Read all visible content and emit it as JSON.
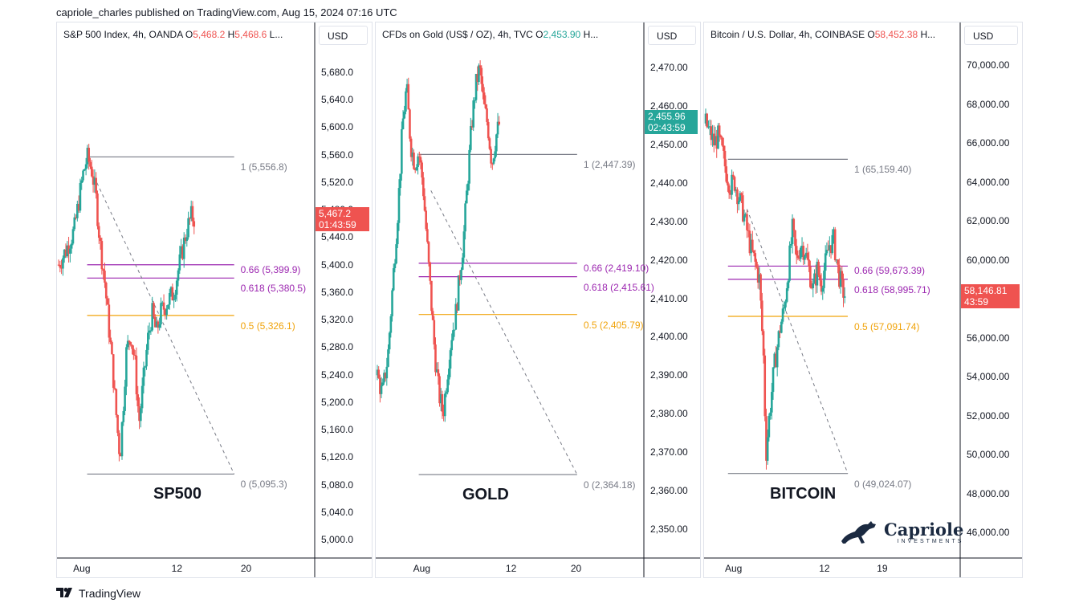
{
  "byline": "capriole_charles published on TradingView.com, Aug 15, 2024 07:16 UTC",
  "footer_brand": "TradingView",
  "watermark": {
    "name": "Capriole",
    "tagline": "INVESTMENTS"
  },
  "colors": {
    "up": "#26a69a",
    "down": "#ef5350",
    "fib_0618": "#9c27b0",
    "fib_05": "#f0a30a",
    "fib_extreme": "#787b86"
  },
  "chart_data": [
    {
      "type": "candlestick",
      "name": "SP500",
      "header": {
        "symbol": "S&P 500 Index, 4h, OANDA",
        "o_label": "O",
        "o": "5,468.2",
        "h_label": "H",
        "h": "5,468.6",
        "trail": "L..."
      },
      "currency": "USD",
      "ylim": [
        4985,
        5725
      ],
      "yticks": [
        "5,680.0",
        "5,640.0",
        "5,600.0",
        "5,560.0",
        "5,520.0",
        "5,480.0",
        "5,440.0",
        "5,400.0",
        "5,360.0",
        "5,320.0",
        "5,280.0",
        "5,240.0",
        "5,200.0",
        "5,160.0",
        "5,120.0",
        "5,080.0",
        "5,040.0",
        "5,000.0"
      ],
      "ytick_values": [
        5680,
        5640,
        5600,
        5560,
        5520,
        5480,
        5440,
        5400,
        5360,
        5320,
        5280,
        5240,
        5200,
        5160,
        5120,
        5080,
        5040,
        5000
      ],
      "xticks": [
        "Aug",
        "12",
        "20"
      ],
      "xtick_days": [
        1,
        12,
        20
      ],
      "x_range_days": [
        -1.8,
        21.5
      ],
      "last_price": "5,467.2",
      "countdown": "01:43:59",
      "last_value": 5467.2,
      "fib_levels": [
        {
          "label": "1 (5,556.8)",
          "value": 5556.8,
          "kind": "extreme"
        },
        {
          "label": "0.66 (5,399.9)",
          "value": 5399.9,
          "kind": "fib"
        },
        {
          "label": "0.618 (5,380.5)",
          "value": 5380.5,
          "kind": "fib"
        },
        {
          "label": "0.5 (5,326.1)",
          "value": 5326.1,
          "kind": "half"
        },
        {
          "label": "0 (5,095.3)",
          "value": 5095.3,
          "kind": "extreme"
        }
      ],
      "fib_span_days": [
        1.5,
        18.5
      ],
      "trend_from": {
        "day": 2.0,
        "value": 5536
      },
      "trend_to": {
        "day": 18.5,
        "value": 5095.3
      },
      "path": [
        [
          -1.8,
          5400
        ],
        [
          -1,
          5420
        ],
        [
          0,
          5450
        ],
        [
          1,
          5530
        ],
        [
          1.5,
          5556
        ],
        [
          2,
          5540
        ],
        [
          2.5,
          5500
        ],
        [
          3,
          5430
        ],
        [
          3.5,
          5380
        ],
        [
          4,
          5310
        ],
        [
          4.5,
          5240
        ],
        [
          5,
          5160
        ],
        [
          5.3,
          5120
        ],
        [
          5.7,
          5200
        ],
        [
          6,
          5270
        ],
        [
          6.5,
          5300
        ],
        [
          7,
          5260
        ],
        [
          7.5,
          5170
        ],
        [
          8,
          5230
        ],
        [
          8.5,
          5290
        ],
        [
          9,
          5330
        ],
        [
          9.5,
          5300
        ],
        [
          10,
          5330
        ],
        [
          10.5,
          5340
        ],
        [
          11,
          5350
        ],
        [
          11.5,
          5360
        ],
        [
          12,
          5390
        ],
        [
          12.5,
          5420
        ],
        [
          13,
          5450
        ],
        [
          13.5,
          5470
        ],
        [
          14,
          5467
        ]
      ]
    },
    {
      "type": "candlestick",
      "name": "GOLD",
      "header": {
        "symbol": "CFDs on Gold (US$ / OZ), 4h, TVC",
        "o_label": "O",
        "o": "2,453.90",
        "h_label": "H",
        "h": "",
        "trail": "..."
      },
      "currency": "USD",
      "ylim": [
        2343.5,
        2475
      ],
      "yticks": [
        "2,470.00",
        "2,460.00",
        "2,450.00",
        "2,440.00",
        "2,430.00",
        "2,420.00",
        "2,410.00",
        "2,400.00",
        "2,390.00",
        "2,380.00",
        "2,370.00",
        "2,360.00",
        "2,350.00"
      ],
      "ytick_values": [
        2470,
        2460,
        2450,
        2440,
        2430,
        2420,
        2410,
        2400,
        2390,
        2380,
        2370,
        2360,
        2350
      ],
      "xticks": [
        "Aug",
        "12",
        "20"
      ],
      "xtick_days": [
        1,
        12,
        20
      ],
      "x_range_days": [
        -4.6,
        21.5
      ],
      "last_price": "2,455.96",
      "countdown": "02:43:59",
      "last_value": 2455.96,
      "fib_levels": [
        {
          "label": "1 (2,447.39)",
          "value": 2447.39,
          "kind": "extreme"
        },
        {
          "label": "0.66 (2,419.10)",
          "value": 2419.1,
          "kind": "fib"
        },
        {
          "label": "0.618 (2,415.61)",
          "value": 2415.61,
          "kind": "fib"
        },
        {
          "label": "0.5 (2,405.79)",
          "value": 2405.79,
          "kind": "half"
        },
        {
          "label": "0 (2,364.18)",
          "value": 2364.18,
          "kind": "extreme"
        }
      ],
      "fib_span_days": [
        0.5,
        20
      ],
      "trend_from": {
        "day": 2.0,
        "value": 2438
      },
      "trend_to": {
        "day": 20,
        "value": 2364.18
      },
      "path": [
        [
          -4.6,
          2390
        ],
        [
          -4,
          2385
        ],
        [
          -3.3,
          2395
        ],
        [
          -2.5,
          2420
        ],
        [
          -2,
          2435
        ],
        [
          -1.5,
          2455
        ],
        [
          -1,
          2465
        ],
        [
          -0.5,
          2450
        ],
        [
          0,
          2445
        ],
        [
          0.5,
          2448
        ],
        [
          1,
          2440
        ],
        [
          1.5,
          2425
        ],
        [
          2,
          2410
        ],
        [
          2.5,
          2395
        ],
        [
          3,
          2385
        ],
        [
          3.5,
          2380
        ],
        [
          4,
          2390
        ],
        [
          4.5,
          2400
        ],
        [
          5,
          2405
        ],
        [
          5.5,
          2415
        ],
        [
          6,
          2425
        ],
        [
          6.5,
          2440
        ],
        [
          7,
          2455
        ],
        [
          7.5,
          2465
        ],
        [
          8,
          2470
        ],
        [
          8.5,
          2460
        ],
        [
          9,
          2455
        ],
        [
          9.5,
          2445
        ],
        [
          10,
          2452
        ],
        [
          10.5,
          2456
        ]
      ]
    },
    {
      "type": "candlestick",
      "name": "BITCOIN",
      "header": {
        "symbol": "Bitcoin / U.S. Dollar, 4h, COINBASE",
        "o_label": "O",
        "o": "58,452.38",
        "h_label": "H",
        "h": "",
        "trail": "..."
      },
      "currency": "USD",
      "ylim": [
        44100,
        71300
      ],
      "yticks": [
        "70,000.00",
        "68,000.00",
        "66,000.00",
        "64,000.00",
        "62,000.00",
        "60,000.00",
        "58,000.00",
        "56,000.00",
        "54,000.00",
        "52,000.00",
        "50,000.00",
        "48,000.00",
        "46,000.00"
      ],
      "ytick_values": [
        70000,
        68000,
        66000,
        64000,
        62000,
        60000,
        58000,
        56000,
        54000,
        52000,
        50000,
        48000,
        46000
      ],
      "xticks": [
        "Aug",
        "12",
        "19"
      ],
      "xtick_days": [
        1,
        12,
        19
      ],
      "x_range_days": [
        -2.5,
        21.7
      ],
      "last_price": "58,146.81",
      "countdown": "43:59",
      "last_value": 58146.81,
      "fib_levels": [
        {
          "label": "1 (65,159.40)",
          "value": 65159.4,
          "kind": "extreme"
        },
        {
          "label": "0.66 (59,673.39)",
          "value": 59673.39,
          "kind": "fib"
        },
        {
          "label": "0.618 (58,995.71)",
          "value": 58995.71,
          "kind": "fib"
        },
        {
          "label": "0.5 (57,091.74)",
          "value": 57091.74,
          "kind": "half"
        },
        {
          "label": "0 (49,024.07)",
          "value": 49024.07,
          "kind": "extreme"
        }
      ],
      "fib_span_days": [
        0.2,
        14.7
      ],
      "trend_from": {
        "day": 2.5,
        "value": 62600
      },
      "trend_to": {
        "day": 14.7,
        "value": 49024.07
      },
      "path": [
        [
          -2.5,
          67000
        ],
        [
          -2,
          66500
        ],
        [
          -1.5,
          66000
        ],
        [
          -1,
          66300
        ],
        [
          -0.5,
          65500
        ],
        [
          0,
          64500
        ],
        [
          0.5,
          63800
        ],
        [
          1,
          64000
        ],
        [
          1.5,
          63200
        ],
        [
          2,
          62500
        ],
        [
          2.5,
          61500
        ],
        [
          3,
          60500
        ],
        [
          3.5,
          59800
        ],
        [
          4,
          59000
        ],
        [
          4.5,
          55000
        ],
        [
          4.8,
          50000
        ],
        [
          5.2,
          52000
        ],
        [
          5.8,
          54500
        ],
        [
          6.5,
          56500
        ],
        [
          7,
          57500
        ],
        [
          7.5,
          59500
        ],
        [
          8,
          61500
        ],
        [
          8.5,
          60000
        ],
        [
          9,
          60800
        ],
        [
          9.5,
          60500
        ],
        [
          10,
          59500
        ],
        [
          10.5,
          58500
        ],
        [
          11,
          59500
        ],
        [
          11.5,
          58800
        ],
        [
          12,
          59800
        ],
        [
          12.5,
          60800
        ],
        [
          13,
          61000
        ],
        [
          13.5,
          59500
        ],
        [
          14,
          58500
        ],
        [
          14.4,
          58146
        ]
      ]
    }
  ]
}
